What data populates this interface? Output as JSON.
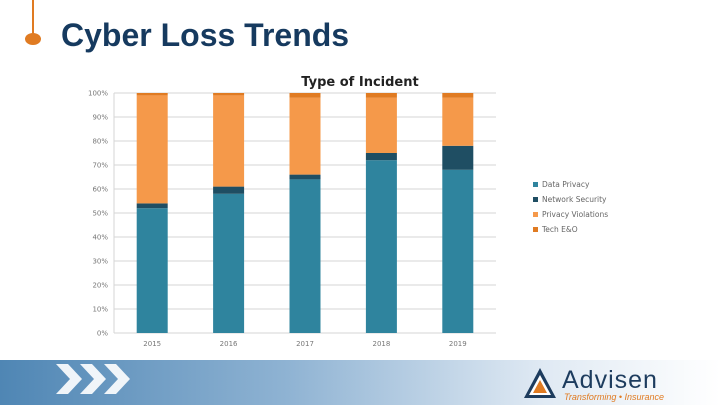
{
  "slide": {
    "title": "Cyber Loss Trends"
  },
  "brand": {
    "logo_text": "Advisen",
    "tagline": "Transforming • Insurance",
    "colors": {
      "accent": "#e07b22",
      "navy": "#1d3c5e"
    }
  },
  "chart_data": {
    "type": "bar",
    "stacked": true,
    "title": "Type of Incident",
    "xlabel": "",
    "ylabel": "",
    "ylim": [
      0,
      100
    ],
    "y_ticks": [
      "0%",
      "10%",
      "20%",
      "30%",
      "40%",
      "50%",
      "60%",
      "70%",
      "80%",
      "90%",
      "100%"
    ],
    "categories": [
      "2015",
      "2016",
      "2017",
      "2018",
      "2019"
    ],
    "series": [
      {
        "name": "Data Privacy",
        "color": "#2f849e",
        "values": [
          52,
          58,
          64,
          72,
          68
        ]
      },
      {
        "name": "Network Security",
        "color": "#1f4e63",
        "values": [
          2,
          3,
          2,
          3,
          10
        ]
      },
      {
        "name": "Privacy Violations",
        "color": "#f5994a",
        "values": [
          45,
          38,
          32,
          23,
          20
        ]
      },
      {
        "name": "Tech E&O",
        "color": "#e07b22",
        "values": [
          1,
          1,
          2,
          2,
          2
        ]
      }
    ],
    "grid": true,
    "legend_position": "right"
  }
}
